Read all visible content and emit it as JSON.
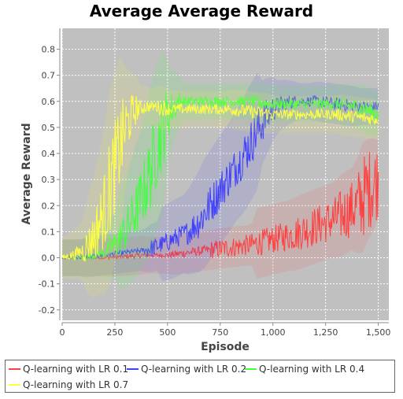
{
  "chart_data": {
    "type": "line",
    "title": "Average Average Reward",
    "xlabel": "Episode",
    "ylabel": "Average Reward",
    "xlim": [
      0,
      1550
    ],
    "ylim": [
      -0.24,
      0.88
    ],
    "xticks": [
      0,
      250,
      500,
      750,
      1000,
      1250,
      1500
    ],
    "xtick_labels": [
      "0",
      "250",
      "500",
      "750",
      "1,000",
      "1,250",
      "1,500"
    ],
    "yticks": [
      -0.2,
      -0.1,
      0.0,
      0.1,
      0.2,
      0.3,
      0.4,
      0.5,
      0.6,
      0.7,
      0.8
    ],
    "ytick_labels": [
      "-0.2",
      "-0.1",
      "0.0",
      "0.1",
      "0.2",
      "0.3",
      "0.4",
      "0.5",
      "0.6",
      "0.7",
      "0.8"
    ],
    "grid": true,
    "background": "#c0c0c0",
    "legend_position": "bottom",
    "series": [
      {
        "name": "Q-learning with LR 0.1",
        "color": "#ff4040",
        "x": [
          0,
          200,
          400,
          500,
          600,
          700,
          800,
          900,
          1000,
          1100,
          1200,
          1300,
          1400,
          1450,
          1500
        ],
        "y": [
          0.0,
          0.0,
          0.01,
          0.01,
          0.02,
          0.03,
          0.04,
          0.05,
          0.07,
          0.09,
          0.12,
          0.15,
          0.2,
          0.26,
          0.3
        ]
      },
      {
        "name": "Q-learning with LR 0.2",
        "color": "#4040ff",
        "x": [
          0,
          100,
          200,
          300,
          400,
          500,
          600,
          650,
          700,
          750,
          800,
          850,
          900,
          950,
          1000,
          1050,
          1100,
          1200,
          1300,
          1400,
          1500
        ],
        "y": [
          0.0,
          0.0,
          0.01,
          0.02,
          0.03,
          0.06,
          0.1,
          0.14,
          0.2,
          0.26,
          0.32,
          0.38,
          0.45,
          0.52,
          0.57,
          0.59,
          0.6,
          0.6,
          0.59,
          0.58,
          0.58
        ]
      },
      {
        "name": "Q-learning with LR 0.4",
        "color": "#40ff40",
        "x": [
          0,
          100,
          150,
          200,
          250,
          300,
          350,
          400,
          450,
          500,
          550,
          600,
          700,
          800,
          900,
          1000,
          1100,
          1200,
          1300,
          1400,
          1500
        ],
        "y": [
          0.0,
          0.0,
          0.01,
          0.02,
          0.05,
          0.1,
          0.18,
          0.28,
          0.42,
          0.55,
          0.6,
          0.6,
          0.6,
          0.6,
          0.6,
          0.59,
          0.59,
          0.59,
          0.59,
          0.58,
          0.55
        ]
      },
      {
        "name": "Q-learning with LR 0.7",
        "color": "#ffff40",
        "x": [
          0,
          50,
          100,
          150,
          200,
          250,
          300,
          350,
          400,
          450,
          500,
          600,
          700,
          800,
          900,
          1000,
          1100,
          1200,
          1300,
          1400,
          1500
        ],
        "y": [
          0.0,
          0.01,
          0.03,
          0.08,
          0.18,
          0.35,
          0.5,
          0.57,
          0.58,
          0.58,
          0.57,
          0.57,
          0.57,
          0.57,
          0.56,
          0.55,
          0.55,
          0.55,
          0.55,
          0.54,
          0.53
        ]
      }
    ]
  }
}
